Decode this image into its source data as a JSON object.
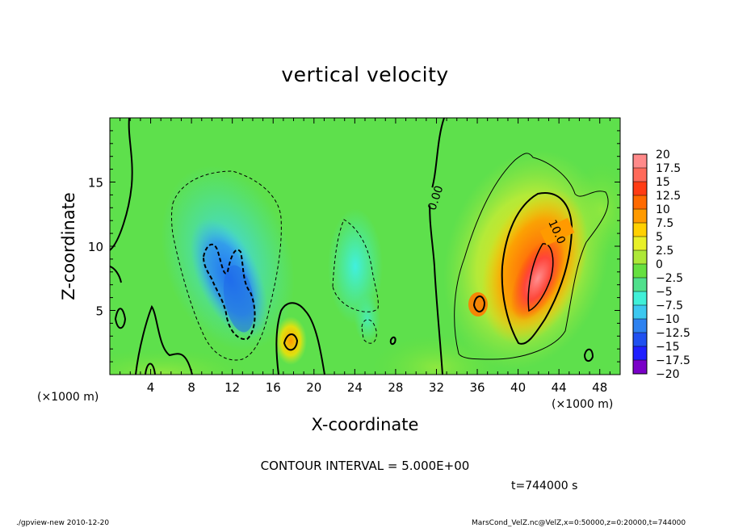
{
  "chart_data": {
    "type": "heatmap",
    "title": "vertical velocity",
    "xlabel": "X-coordinate",
    "ylabel": "Z-coordinate",
    "x_unit_label": "(×1000 m)",
    "xlim": [
      0,
      50
    ],
    "ylim": [
      0,
      20
    ],
    "x_ticks": [
      "4",
      "8",
      "12",
      "16",
      "20",
      "24",
      "28",
      "32",
      "36",
      "40",
      "44",
      "48"
    ],
    "y_ticks": [
      "5",
      "10",
      "15"
    ],
    "colorbar_labels": [
      "20",
      "17.5",
      "15",
      "12.5",
      "10",
      "7.5",
      "5",
      "2.5",
      "0",
      "−2.5",
      "−5",
      "−7.5",
      "−10",
      "−12.5",
      "−15",
      "−17.5",
      "−20"
    ],
    "colorbar_range": [
      -20,
      20
    ],
    "colormap": [
      "#7a00c8",
      "#2020ff",
      "#2e82f0",
      "#3cc8f0",
      "#40f0d8",
      "#50e08c",
      "#66e040",
      "#c8ee30",
      "#ffe100",
      "#ff9a00",
      "#ff3c14",
      "#ff8a8a"
    ],
    "contour_labels": [
      "0.00",
      "10.0"
    ],
    "cells": [
      {
        "x": 11,
        "z": 8,
        "value": -12.5
      },
      {
        "x": 12,
        "z": 6,
        "value": -15
      },
      {
        "x": 10,
        "z": 11,
        "value": -7.5
      },
      {
        "x": 24,
        "z": 7,
        "value": -5
      },
      {
        "x": 18,
        "z": 2.5,
        "value": 7.5
      },
      {
        "x": 36,
        "z": 5.5,
        "value": 7.5
      },
      {
        "x": 42,
        "z": 9,
        "value": 15
      },
      {
        "x": 41,
        "z": 7,
        "value": 17.5
      }
    ],
    "contour_interval": "CONTOUR INTERVAL = 5.000E+00",
    "time": "t=744000 s",
    "footer_left": "./gpview-new  2010-12-20",
    "footer_right": "MarsCond_VelZ.nc@VelZ,x=0:50000,z=0:20000,t=744000"
  }
}
